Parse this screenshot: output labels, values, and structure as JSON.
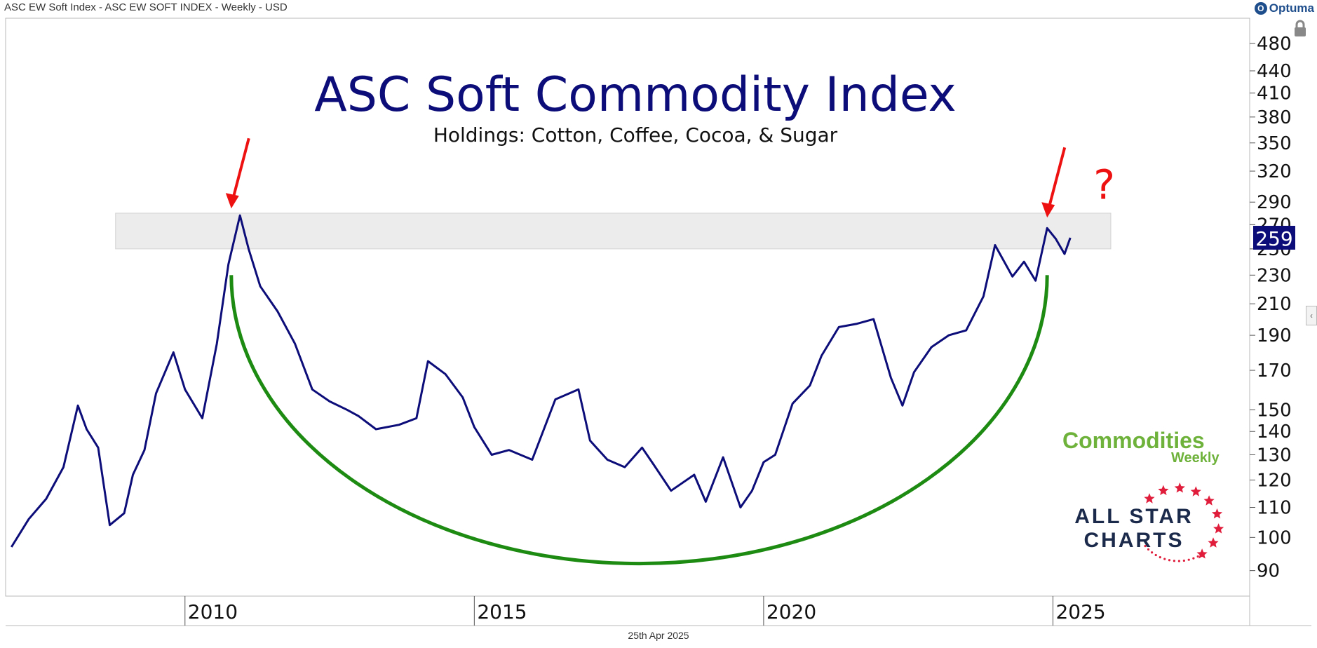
{
  "header": {
    "instrument": "ASC EW Soft Index - ASC EW SOFT INDEX - Weekly - USD",
    "brand": "Optuma",
    "footer_date": "25th Apr 2025"
  },
  "branding": {
    "commodities_weekly": "Commodities",
    "commodities_weekly_sub": "Weekly",
    "all_star_charts_line1": "ALL STAR",
    "all_star_charts_line2": "CHARTS"
  },
  "colors": {
    "price_line": "#0d0d7a",
    "arc": "#1d8a12",
    "arrows": "#ee1111",
    "resistance_zone": "#ececec",
    "title": "#0d0d7a",
    "last_price_bg": "#0d0d7a"
  },
  "chart_data": {
    "type": "line",
    "title": "ASC Soft Commodity Index",
    "subtitle": "Holdings: Cotton, Coffee, Cocoa, & Sugar",
    "y_scale": "log",
    "ylim": [
      83,
      520
    ],
    "xlim": [
      2006.9,
      2028.4
    ],
    "y_ticks": [
      480,
      440,
      410,
      380,
      350,
      320,
      290,
      270,
      250,
      230,
      210,
      190,
      170,
      150,
      140,
      130,
      120,
      110,
      100,
      90
    ],
    "x_ticks": [
      "2010",
      "2015",
      "2020",
      "2025"
    ],
    "last_value": 259,
    "last_value_label": "259",
    "series": [
      {
        "x": [
          2007.0,
          2007.3,
          2007.6,
          2007.9,
          2008.15,
          2008.3,
          2008.5,
          2008.7,
          2008.95,
          2009.1,
          2009.3,
          2009.5,
          2009.8,
          2010.0,
          2010.3,
          2010.55,
          2010.75,
          2010.95,
          2011.1,
          2011.3,
          2011.6,
          2011.9,
          2012.2,
          2012.5,
          2012.8,
          2013.0,
          2013.3,
          2013.7,
          2014.0,
          2014.2,
          2014.5,
          2014.8,
          2015.0,
          2015.3,
          2015.6,
          2016.0,
          2016.4,
          2016.8,
          2017.0,
          2017.3,
          2017.6,
          2017.9,
          2018.1,
          2018.4,
          2018.8,
          2019.0,
          2019.3,
          2019.6,
          2019.8,
          2020.0,
          2020.2,
          2020.5,
          2020.8,
          2021.0,
          2021.3,
          2021.6,
          2021.9,
          2022.2,
          2022.4,
          2022.6,
          2022.9,
          2023.2,
          2023.5,
          2023.8,
          2024.0,
          2024.3,
          2024.5,
          2024.7,
          2024.9,
          2025.05,
          2025.2,
          2025.3
        ],
        "values": [
          97,
          106,
          113,
          125,
          152,
          141,
          133,
          104,
          108,
          122,
          132,
          158,
          180,
          160,
          146,
          185,
          238,
          278,
          250,
          222,
          205,
          185,
          160,
          154,
          150,
          147,
          141,
          143,
          146,
          175,
          168,
          156,
          142,
          130,
          132,
          128,
          155,
          160,
          136,
          128,
          125,
          133,
          126,
          116,
          122,
          112,
          129,
          110,
          116,
          127,
          130,
          153,
          162,
          178,
          195,
          197,
          200,
          166,
          152,
          169,
          183,
          190,
          193,
          215,
          253,
          229,
          240,
          226,
          267,
          258,
          246,
          259
        ]
      }
    ],
    "annotations": [
      {
        "type": "resistance-zone",
        "y_range": [
          250,
          280
        ],
        "x_range": [
          2008.8,
          2026.0
        ]
      },
      {
        "type": "arrow",
        "x": 2010.8,
        "y": 278
      },
      {
        "type": "arrow",
        "x": 2024.9,
        "y": 270
      },
      {
        "type": "text",
        "text": "?",
        "x": 2025.7,
        "y": 305
      },
      {
        "type": "rounding-arc",
        "x_start": 2010.8,
        "x_end": 2024.9,
        "y_start": 230,
        "y_bottom": 92
      }
    ]
  }
}
